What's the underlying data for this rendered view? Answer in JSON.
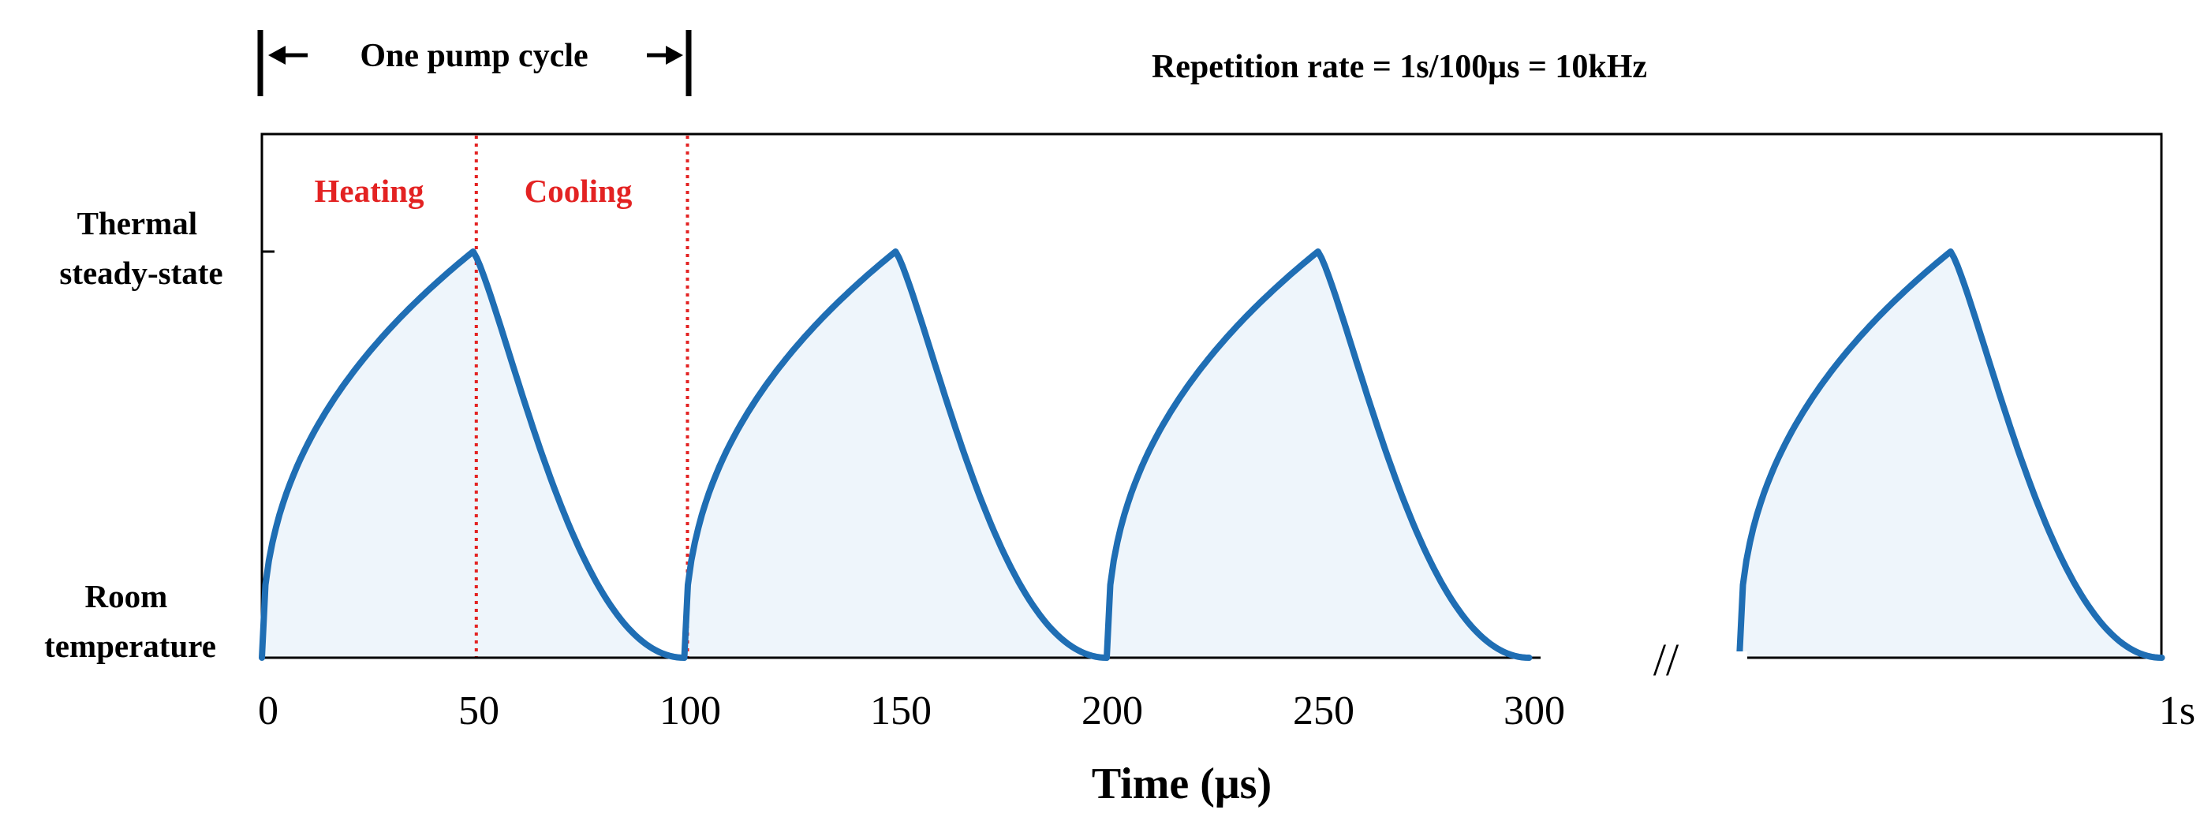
{
  "chart_data": {
    "type": "line",
    "title": "Repetition rate = 1s/100μs = 10kHz",
    "xlabel": "Time (μs)",
    "ylabel": "",
    "y_tick_labels": [
      {
        "value": 0,
        "lines": [
          "Room",
          "temperature"
        ]
      },
      {
        "value": 1,
        "lines": [
          "Thermal",
          "steady-state"
        ]
      }
    ],
    "x_ticks": [
      {
        "value": 0,
        "label": "0"
      },
      {
        "value": 50,
        "label": "50"
      },
      {
        "value": 100,
        "label": "100"
      },
      {
        "value": 150,
        "label": "150"
      },
      {
        "value": 200,
        "label": "200"
      },
      {
        "value": 250,
        "label": "250"
      },
      {
        "value": 300,
        "label": "300"
      },
      {
        "value": 1000000,
        "label": "1s"
      }
    ],
    "axis_break_label": "//",
    "pump_cycle": {
      "label": "One pump cycle",
      "start": 0,
      "end": 100
    },
    "phase_labels": [
      {
        "text": "Heating",
        "color": "#e32222"
      },
      {
        "text": "Cooling",
        "color": "#e32222"
      }
    ],
    "phase_dividers": [
      50,
      100
    ],
    "series": [
      {
        "name": "Temperature",
        "color": "#1f6eb4",
        "fill": "#eef5fb",
        "period_us": 100,
        "heating_us": 50,
        "cycles": [
          {
            "start": 0,
            "peak": 50,
            "end": 100
          },
          {
            "start": 100,
            "peak": 150,
            "end": 200
          },
          {
            "start": 200,
            "peak": 250,
            "end": 300
          },
          {
            "start": "1s-100μs",
            "peak": "1s-50μs",
            "end": "1s"
          }
        ],
        "y_min": 0,
        "y_peak": 1
      }
    ]
  }
}
